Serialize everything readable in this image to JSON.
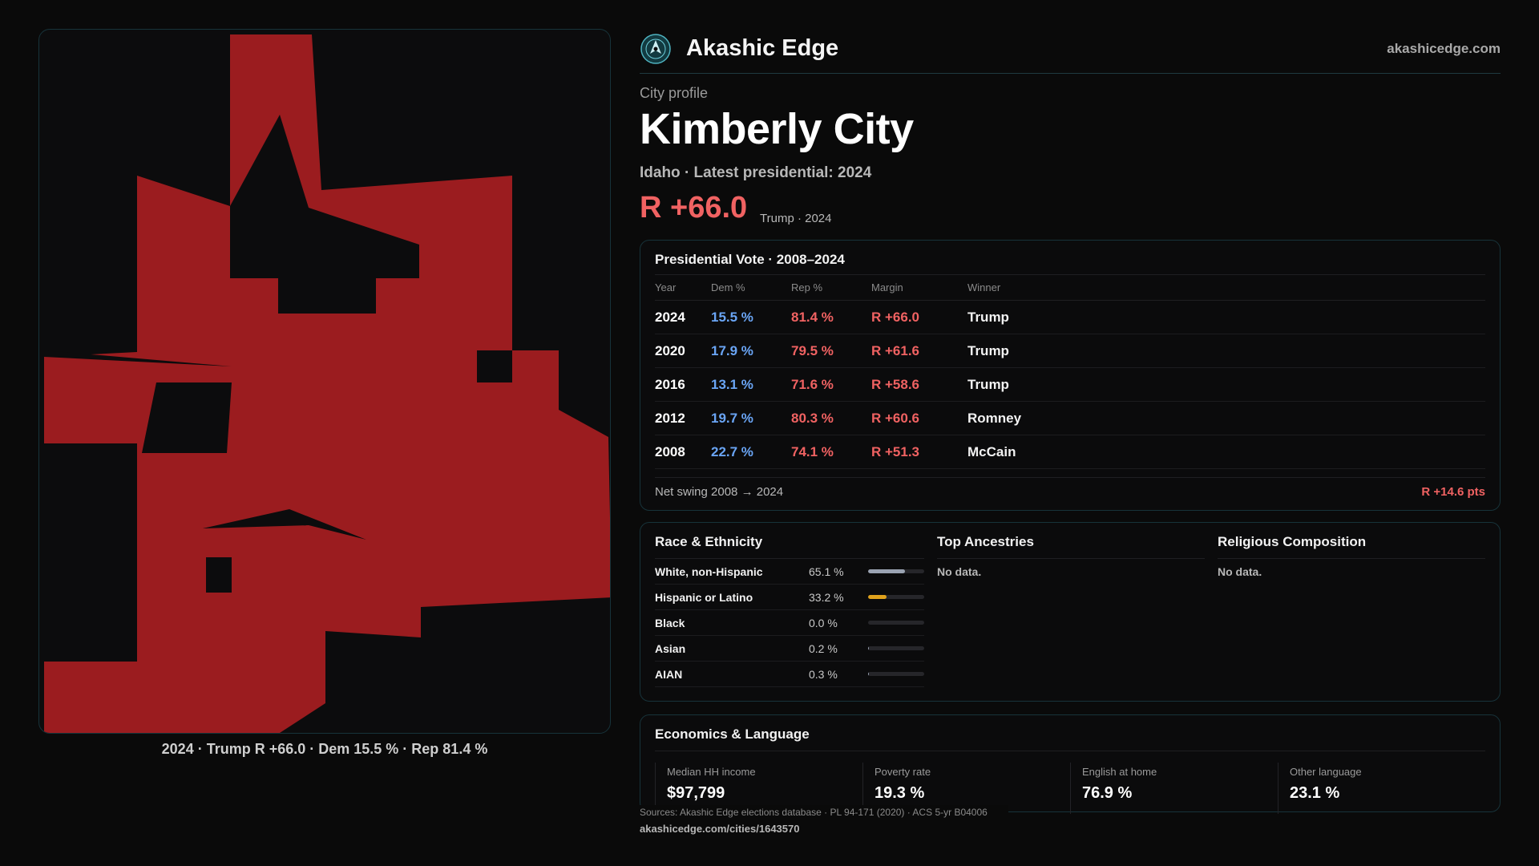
{
  "brand": {
    "name": "Akashic Edge",
    "site": "akashicedge.com"
  },
  "map": {
    "caption": "2024 · Trump R +66.0 · Dem 15.5 % · Rep 81.4 %",
    "fill_color": "#9b1c1f"
  },
  "profile": {
    "kicker": "City profile",
    "title": "Kimberly City",
    "subtitle": "Idaho · Latest presidential: 2024",
    "margin": "R +66.0",
    "margin_note": "Trump · 2024"
  },
  "vote": {
    "title": "Presidential Vote · 2008–2024",
    "headers": [
      "Year",
      "Dem %",
      "Rep %",
      "Margin",
      "Winner"
    ],
    "rows": [
      {
        "year": "2024",
        "dem": "15.5 %",
        "rep": "81.4 %",
        "margin": "R +66.0",
        "winner": "Trump"
      },
      {
        "year": "2020",
        "dem": "17.9 %",
        "rep": "79.5 %",
        "margin": "R +61.6",
        "winner": "Trump"
      },
      {
        "year": "2016",
        "dem": "13.1 %",
        "rep": "71.6 %",
        "margin": "R +58.6",
        "winner": "Trump"
      },
      {
        "year": "2012",
        "dem": "19.7 %",
        "rep": "80.3 %",
        "margin": "R +60.6",
        "winner": "Romney"
      },
      {
        "year": "2008",
        "dem": "22.7 %",
        "rep": "74.1 %",
        "margin": "R +51.3",
        "winner": "McCain"
      }
    ],
    "swing_label": "Net swing 2008 → 2024",
    "swing_value": "R +14.6 pts"
  },
  "race": {
    "title": "Race & Ethnicity",
    "rows": [
      {
        "label": "White, non-Hispanic",
        "pct": "65.1 %",
        "fraction": 0.651,
        "color": "#9aa3b2"
      },
      {
        "label": "Hispanic or Latino",
        "pct": "33.2 %",
        "fraction": 0.332,
        "color": "#e0a21c"
      },
      {
        "label": "Black",
        "pct": "0.0 %",
        "fraction": 0.0,
        "color": "#9aa3b2"
      },
      {
        "label": "Asian",
        "pct": "0.2 %",
        "fraction": 0.002,
        "color": "#9aa3b2"
      },
      {
        "label": "AIAN",
        "pct": "0.3 %",
        "fraction": 0.003,
        "color": "#9aa3b2"
      }
    ]
  },
  "ancestries": {
    "title": "Top Ancestries",
    "empty": "No data."
  },
  "religion": {
    "title": "Religious Composition",
    "empty": "No data."
  },
  "econ": {
    "title": "Economics & Language",
    "cells": [
      {
        "label": "Median HH income",
        "value": "$97,799"
      },
      {
        "label": "Poverty rate",
        "value": "19.3 %"
      },
      {
        "label": "English at home",
        "value": "76.9 %"
      },
      {
        "label": "Other language",
        "value": "23.1 %"
      }
    ]
  },
  "footer": {
    "sources": "Sources: Akashic Edge elections database · PL 94-171 (2020) · ACS 5-yr B04006",
    "url": "akashicedge.com/cities/1643570"
  },
  "colors": {
    "accent_rep": "#f06262",
    "accent_dem": "#6aa5f5",
    "border": "#17333a"
  }
}
